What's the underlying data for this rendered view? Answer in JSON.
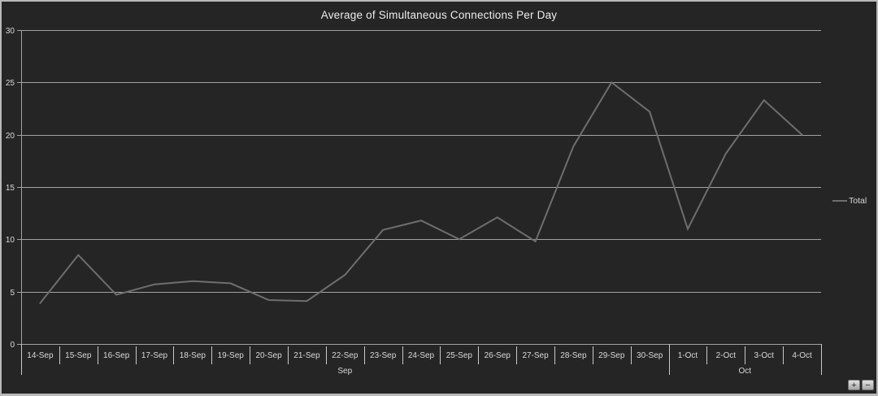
{
  "window": {
    "background": "#252525",
    "frame_border": "#b9b9b9"
  },
  "chart_data": {
    "type": "line",
    "title": "Average of Simultaneous Connections Per Day",
    "categories": [
      "14-Sep",
      "15-Sep",
      "16-Sep",
      "17-Sep",
      "18-Sep",
      "19-Sep",
      "20-Sep",
      "21-Sep",
      "22-Sep",
      "23-Sep",
      "24-Sep",
      "25-Sep",
      "26-Sep",
      "27-Sep",
      "28-Sep",
      "29-Sep",
      "30-Sep",
      "1-Oct",
      "2-Oct",
      "3-Oct",
      "4-Oct"
    ],
    "month_groups": [
      {
        "label": "Sep",
        "span": 17
      },
      {
        "label": "Oct",
        "span": 4
      }
    ],
    "series": [
      {
        "name": "Total",
        "color": "#6e6e6e",
        "values": [
          3.9,
          8.5,
          4.7,
          5.7,
          6.0,
          5.8,
          4.2,
          4.1,
          6.6,
          10.9,
          11.8,
          10.0,
          12.1,
          9.8,
          18.9,
          25.0,
          22.2,
          11.0,
          18.2,
          23.3,
          20.0
        ]
      }
    ],
    "xlabel": "",
    "ylabel": "",
    "ylim": [
      0,
      30
    ],
    "yticks": [
      0,
      5,
      10,
      15,
      20,
      25,
      30
    ],
    "grid": true,
    "legend_position": "right",
    "colors": {
      "grid": "#a2a2a2",
      "axis_line": "#a2a2a2",
      "axis_text": "#d9d9d9",
      "title_text": "#ececec",
      "cell_border": "#c9c9c9",
      "series_line": "#6e6e6e"
    }
  },
  "legend": {
    "label": "Total"
  },
  "pivot_buttons": {
    "expand_label": "+",
    "collapse_label": "−"
  }
}
